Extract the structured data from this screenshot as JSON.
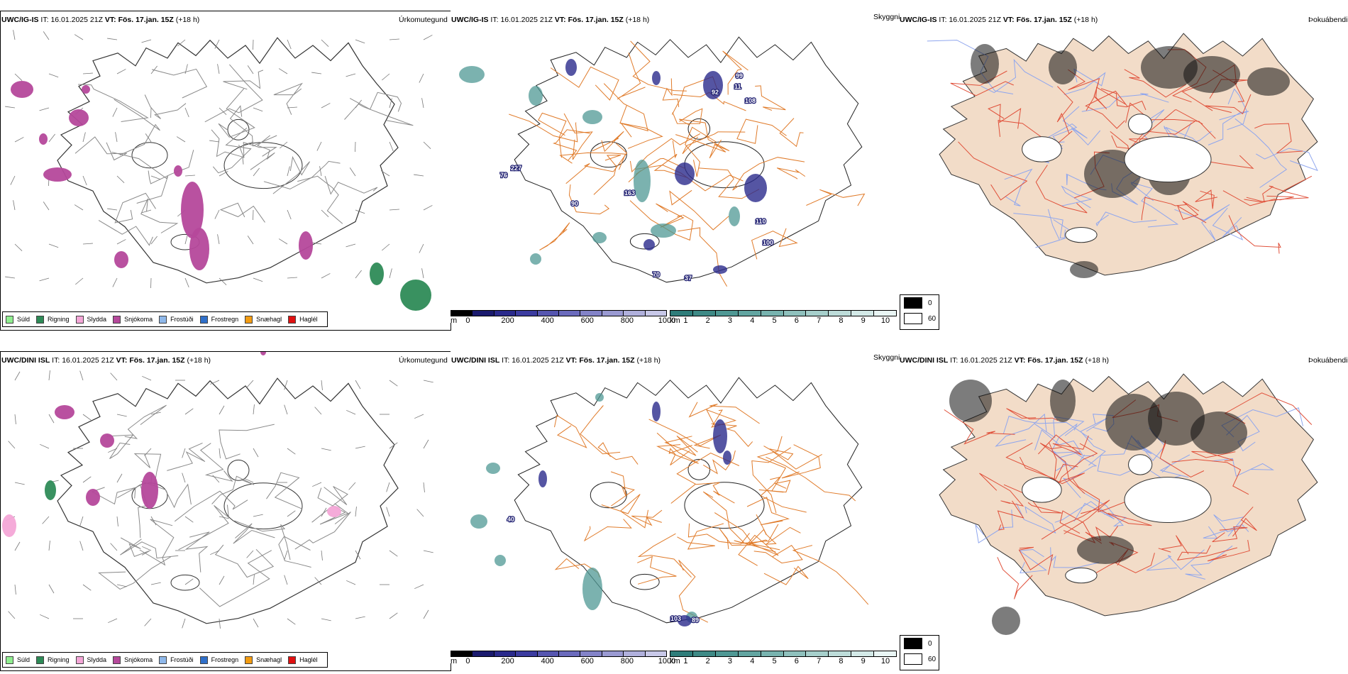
{
  "rows": [
    {
      "precip": {
        "model": "UWC/IG-IS",
        "it_label": "IT:",
        "it_value": "16.01.2025 21Z",
        "vt_label": "VT:",
        "vt_value": "Fös. 17.jan. 15Z",
        "lead": "(+18 h)",
        "right_title": "Úrkomutegund"
      },
      "cloudbase": {
        "model": "UWC/IG-IS",
        "it_label": "IT:",
        "it_value": "16.01.2025 21Z",
        "vt_label": "VT:",
        "vt_value": "Fös. 17.jan. 15Z",
        "lead": "(+18 h)",
        "right_title": "Skyggni"
      },
      "fog": {
        "model": "UWC/IG-IS",
        "it_label": "IT:",
        "it_value": "16.01.2025 21Z",
        "vt_label": "VT:",
        "vt_value": "Fös. 17.jan. 15Z",
        "lead": "(+18 h)",
        "right_title": "Þokuábendi"
      },
      "cloud_labels": [
        "227",
        "76",
        "163",
        "90",
        "99",
        "11",
        "92",
        "108",
        "110",
        "100",
        "70",
        "37"
      ]
    },
    {
      "precip": {
        "model": "UWC/DINI ISL",
        "it_label": "IT:",
        "it_value": "16.01.2025 21Z",
        "vt_label": "VT:",
        "vt_value": "Fös. 17.jan. 15Z",
        "lead": "(+18 h)",
        "right_title": "Úrkomutegund"
      },
      "cloudbase": {
        "model": "UWC/DINI ISL",
        "it_label": "IT:",
        "it_value": "16.01.2025 21Z",
        "vt_label": "VT:",
        "vt_value": "Fös. 17.jan. 15Z",
        "lead": "(+18 h)",
        "right_title": "Skyggni"
      },
      "fog": {
        "model": "UWC/DINI ISL",
        "it_label": "IT:",
        "it_value": "16.01.2025 21Z",
        "vt_label": "VT:",
        "vt_value": "Fös. 17.jan. 15Z",
        "lead": "(+18 h)",
        "right_title": "Þokuábendi"
      },
      "cloud_labels": [
        "40",
        "103",
        "89"
      ]
    }
  ],
  "precip_legend": [
    {
      "label": "Súld",
      "color": "#90ee90"
    },
    {
      "label": "Rigning",
      "color": "#2e8b57"
    },
    {
      "label": "Slydda",
      "color": "#f4a6d7"
    },
    {
      "label": "Snjókoma",
      "color": "#b5489b"
    },
    {
      "label": "Frostúði",
      "color": "#8fb8ea"
    },
    {
      "label": "Frostregn",
      "color": "#2f6fc9"
    },
    {
      "label": "Snæhagl",
      "color": "#f39c12"
    },
    {
      "label": "Haglél",
      "color": "#e01010"
    }
  ],
  "cloudbase_scale": {
    "unit": "m",
    "ticks": [
      "0",
      "200",
      "400",
      "600",
      "800",
      "1000"
    ],
    "colors": [
      "#000000",
      "#1a1a6e",
      "#2a2a8c",
      "#3c3ca0",
      "#5656b0",
      "#6b6bbd",
      "#8383c8",
      "#9a9ad2",
      "#b0b0dc",
      "#c8c8e8"
    ]
  },
  "visibility_scale": {
    "unit": "km",
    "ticks": [
      "1",
      "2",
      "3",
      "4",
      "5",
      "6",
      "7",
      "8",
      "9",
      "10"
    ],
    "colors": [
      "#2f7d7a",
      "#3e8a86",
      "#4f9894",
      "#62a5a1",
      "#78b3af",
      "#8fc1bd",
      "#a6cfcb",
      "#bddcd9",
      "#d3e9e7",
      "#e9f5f4"
    ]
  },
  "fog_scale": {
    "max": "0",
    "min": "60",
    "max_color": "#000000",
    "min_color": "#ffffff"
  }
}
